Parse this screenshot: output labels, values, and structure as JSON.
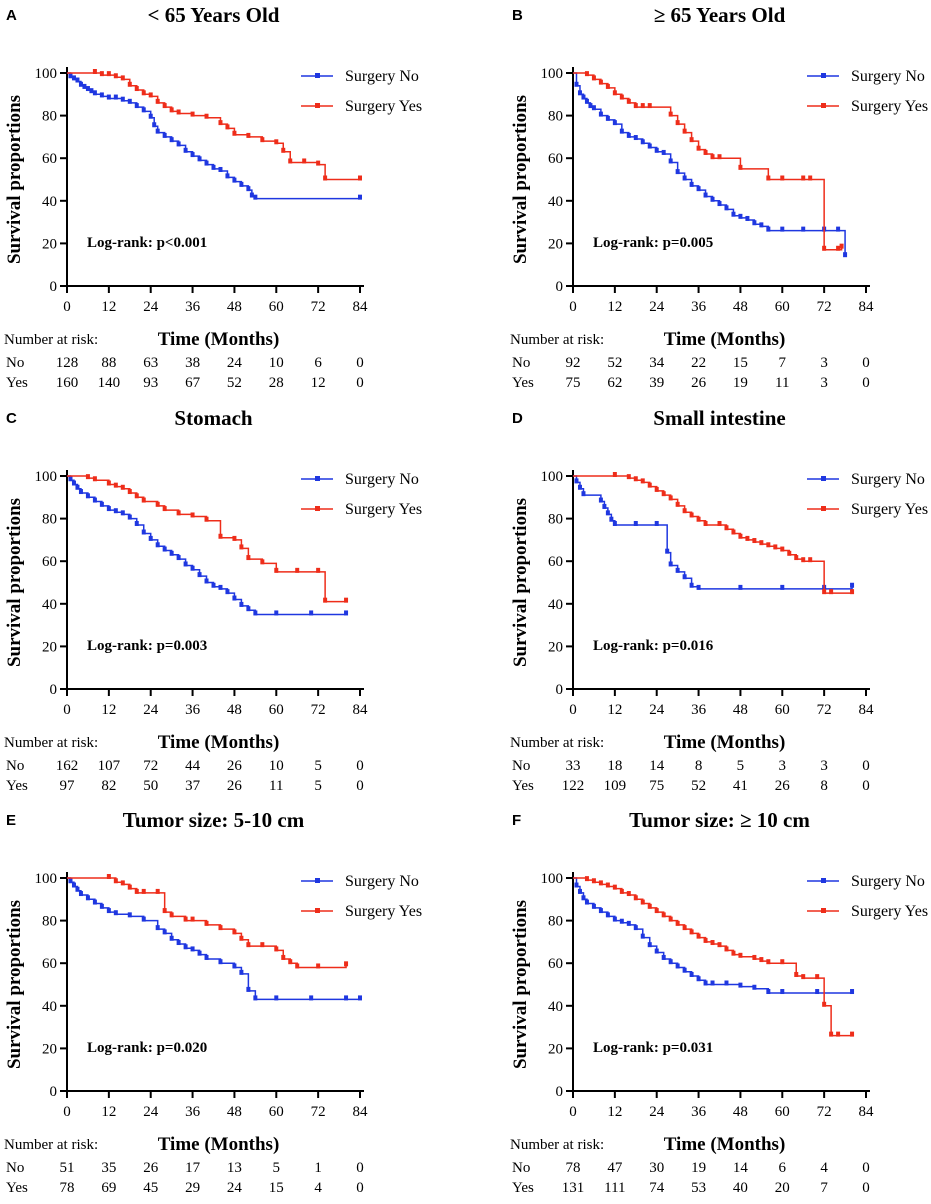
{
  "colors": {
    "no": "#1f37e0",
    "yes": "#ee2d1a",
    "axis": "#000000"
  },
  "axis_common": {
    "ylabel": "Survival proportions",
    "xlabel": "Time (Months)",
    "xticks": [
      0,
      12,
      24,
      36,
      48,
      60,
      72,
      84
    ],
    "yticks": [
      0,
      20,
      40,
      60,
      80,
      100
    ],
    "xlim": [
      0,
      84
    ],
    "ylim": [
      0,
      100
    ],
    "risk_header": "Number at risk:",
    "row_no": "No",
    "row_yes": "Yes"
  },
  "chart_data": [
    {
      "type": "line",
      "panel_label": "A",
      "title": "< 65 Years Old",
      "legend": [
        "Surgery No",
        "Surgery Yes"
      ],
      "annotation": "Log-rank: p<0.001",
      "series": [
        {
          "name": "Surgery No",
          "x": [
            0,
            1,
            2,
            3,
            4,
            5,
            6,
            7,
            8,
            10,
            12,
            14,
            16,
            18,
            20,
            22,
            24,
            25,
            26,
            28,
            30,
            32,
            34,
            36,
            38,
            40,
            42,
            44,
            46,
            48,
            50,
            52,
            53,
            54,
            84
          ],
          "y": [
            100,
            98,
            97,
            96,
            94,
            93,
            92,
            91,
            90,
            89,
            88,
            88,
            87,
            86,
            84,
            82,
            79,
            75,
            72,
            70,
            68,
            66,
            63,
            61,
            59,
            57,
            55,
            54,
            51,
            49,
            47,
            45,
            42,
            41,
            41
          ]
        },
        {
          "name": "Surgery Yes",
          "x": [
            0,
            8,
            10,
            12,
            14,
            16,
            18,
            20,
            22,
            24,
            26,
            28,
            30,
            32,
            36,
            40,
            44,
            46,
            48,
            52,
            56,
            60,
            62,
            64,
            68,
            72,
            74,
            84
          ],
          "y": [
            100,
            100,
            99,
            99,
            98,
            97,
            94,
            92,
            90,
            89,
            86,
            84,
            82,
            81,
            80,
            79,
            76,
            74,
            71,
            70,
            68,
            67,
            63,
            58,
            58,
            57,
            50,
            50
          ]
        }
      ],
      "risk": {
        "No": [
          128,
          88,
          63,
          38,
          24,
          10,
          6,
          0
        ],
        "Yes": [
          160,
          140,
          93,
          67,
          52,
          28,
          12,
          0
        ]
      }
    },
    {
      "type": "line",
      "panel_label": "B",
      "title": "≥ 65 Years Old",
      "legend": [
        "Surgery No",
        "Surgery Yes"
      ],
      "annotation": "Log-rank: p=0.005",
      "series": [
        {
          "name": "Surgery No",
          "x": [
            0,
            1,
            2,
            3,
            4,
            5,
            6,
            8,
            10,
            12,
            14,
            16,
            18,
            20,
            22,
            24,
            26,
            28,
            30,
            32,
            34,
            36,
            38,
            40,
            42,
            44,
            46,
            48,
            50,
            52,
            54,
            56,
            60,
            66,
            72,
            76,
            78
          ],
          "y": [
            100,
            94,
            90,
            88,
            86,
            84,
            83,
            80,
            78,
            76,
            72,
            70,
            69,
            67,
            65,
            63,
            62,
            58,
            53,
            50,
            47,
            45,
            42,
            40,
            38,
            36,
            33,
            32,
            31,
            29,
            28,
            26,
            26,
            26,
            26,
            26,
            14
          ]
        },
        {
          "name": "Surgery Yes",
          "x": [
            0,
            4,
            6,
            8,
            10,
            12,
            14,
            16,
            18,
            20,
            22,
            28,
            30,
            32,
            34,
            36,
            38,
            40,
            42,
            48,
            56,
            60,
            66,
            68,
            72,
            76,
            77
          ],
          "y": [
            100,
            99,
            97,
            95,
            93,
            90,
            88,
            86,
            84,
            84,
            84,
            80,
            76,
            72,
            68,
            64,
            62,
            60,
            60,
            55,
            50,
            50,
            50,
            50,
            17,
            17,
            18
          ]
        }
      ],
      "risk": {
        "No": [
          92,
          52,
          34,
          22,
          15,
          7,
          3,
          0
        ],
        "Yes": [
          75,
          62,
          39,
          26,
          19,
          11,
          3,
          0
        ]
      }
    },
    {
      "type": "line",
      "panel_label": "C",
      "title": "Stomach",
      "legend": [
        "Surgery No",
        "Surgery Yes"
      ],
      "annotation": "Log-rank: p=0.003",
      "series": [
        {
          "name": "Surgery No",
          "x": [
            0,
            1,
            2,
            3,
            4,
            6,
            8,
            10,
            12,
            14,
            16,
            18,
            20,
            22,
            24,
            26,
            28,
            30,
            32,
            34,
            36,
            38,
            40,
            42,
            44,
            46,
            48,
            50,
            52,
            54,
            60,
            70,
            80
          ],
          "y": [
            100,
            98,
            96,
            94,
            92,
            90,
            88,
            86,
            84,
            83,
            82,
            80,
            77,
            73,
            70,
            67,
            65,
            63,
            61,
            58,
            56,
            53,
            50,
            48,
            47,
            45,
            42,
            39,
            37,
            35,
            35,
            35,
            35
          ]
        },
        {
          "name": "Surgery Yes",
          "x": [
            0,
            6,
            8,
            12,
            14,
            16,
            18,
            20,
            22,
            26,
            28,
            32,
            36,
            40,
            44,
            48,
            50,
            52,
            56,
            60,
            66,
            72,
            74,
            80
          ],
          "y": [
            100,
            99,
            98,
            96,
            95,
            94,
            92,
            90,
            88,
            86,
            84,
            82,
            81,
            79,
            71,
            70,
            66,
            61,
            59,
            55,
            55,
            55,
            41,
            41
          ]
        }
      ],
      "risk": {
        "No": [
          162,
          107,
          72,
          44,
          26,
          10,
          5,
          0
        ],
        "Yes": [
          97,
          82,
          50,
          37,
          26,
          11,
          5,
          0
        ]
      }
    },
    {
      "type": "line",
      "panel_label": "D",
      "title": "Small intestine",
      "legend": [
        "Surgery No",
        "Surgery Yes"
      ],
      "annotation": "Log-rank: p=0.016",
      "series": [
        {
          "name": "Surgery No",
          "x": [
            0,
            1,
            2,
            3,
            8,
            9,
            10,
            11,
            12,
            18,
            24,
            27,
            28,
            30,
            32,
            34,
            36,
            48,
            60,
            72,
            80
          ],
          "y": [
            100,
            97,
            94,
            91,
            88,
            85,
            82,
            79,
            77,
            77,
            77,
            64,
            58,
            55,
            52,
            48,
            47,
            47,
            47,
            47,
            48
          ]
        },
        {
          "name": "Surgery Yes",
          "x": [
            0,
            12,
            16,
            18,
            20,
            22,
            24,
            26,
            28,
            30,
            32,
            34,
            36,
            38,
            42,
            44,
            46,
            48,
            50,
            52,
            54,
            56,
            58,
            60,
            62,
            64,
            66,
            68,
            72,
            74,
            80
          ],
          "y": [
            100,
            100,
            99,
            98,
            97,
            95,
            93,
            91,
            89,
            86,
            83,
            81,
            79,
            77,
            77,
            75,
            73,
            71,
            70,
            69,
            68,
            67,
            66,
            65,
            63,
            61,
            60,
            60,
            45,
            45,
            45
          ]
        }
      ],
      "risk": {
        "No": [
          33,
          18,
          14,
          8,
          5,
          3,
          3,
          0
        ],
        "Yes": [
          122,
          109,
          75,
          52,
          41,
          26,
          8,
          0
        ]
      }
    },
    {
      "type": "line",
      "panel_label": "E",
      "title": "Tumor size: 5-10 cm",
      "legend": [
        "Surgery No",
        "Surgery Yes"
      ],
      "annotation": "Log-rank: p=0.020",
      "series": [
        {
          "name": "Surgery No",
          "x": [
            0,
            1,
            2,
            3,
            4,
            6,
            8,
            10,
            12,
            14,
            18,
            22,
            26,
            28,
            30,
            32,
            34,
            36,
            38,
            40,
            44,
            48,
            50,
            52,
            54,
            60,
            70,
            80,
            84
          ],
          "y": [
            100,
            98,
            96,
            94,
            92,
            90,
            88,
            86,
            84,
            83,
            82,
            80,
            76,
            74,
            71,
            69,
            67,
            66,
            64,
            62,
            60,
            58,
            55,
            47,
            43,
            43,
            43,
            43,
            43
          ]
        },
        {
          "name": "Surgery Yes",
          "x": [
            0,
            12,
            14,
            16,
            18,
            20,
            22,
            26,
            28,
            30,
            34,
            36,
            40,
            44,
            48,
            50,
            52,
            56,
            60,
            62,
            64,
            66,
            72,
            80
          ],
          "y": [
            100,
            100,
            98,
            97,
            95,
            93,
            93,
            93,
            84,
            82,
            80,
            80,
            78,
            76,
            74,
            71,
            68,
            68,
            66,
            62,
            60,
            58,
            58,
            59
          ]
        }
      ],
      "risk": {
        "No": [
          51,
          35,
          26,
          17,
          13,
          5,
          1,
          0
        ],
        "Yes": [
          78,
          69,
          45,
          29,
          24,
          15,
          4,
          0
        ]
      }
    },
    {
      "type": "line",
      "panel_label": "F",
      "title": "Tumor size: ≥ 10 cm",
      "legend": [
        "Surgery No",
        "Surgery Yes"
      ],
      "annotation": "Log-rank: p=0.031",
      "series": [
        {
          "name": "Surgery No",
          "x": [
            0,
            1,
            2,
            3,
            4,
            6,
            8,
            10,
            12,
            14,
            16,
            18,
            20,
            22,
            24,
            26,
            28,
            30,
            32,
            34,
            36,
            38,
            40,
            44,
            48,
            52,
            56,
            60,
            70,
            80
          ],
          "y": [
            100,
            96,
            93,
            90,
            88,
            86,
            84,
            82,
            80,
            79,
            78,
            76,
            72,
            68,
            65,
            62,
            60,
            58,
            56,
            54,
            52,
            50,
            50,
            50,
            49,
            48,
            46,
            46,
            46,
            46
          ]
        },
        {
          "name": "Surgery Yes",
          "x": [
            0,
            4,
            6,
            8,
            10,
            12,
            14,
            16,
            18,
            20,
            22,
            24,
            26,
            28,
            30,
            32,
            34,
            36,
            38,
            40,
            42,
            44,
            46,
            48,
            52,
            54,
            56,
            60,
            64,
            66,
            70,
            72,
            74,
            76,
            80
          ],
          "y": [
            100,
            99,
            98,
            97,
            96,
            95,
            93,
            92,
            90,
            88,
            86,
            84,
            82,
            80,
            78,
            76,
            74,
            72,
            70,
            69,
            68,
            66,
            64,
            63,
            62,
            61,
            60,
            60,
            54,
            53,
            53,
            40,
            26,
            26,
            26
          ]
        }
      ],
      "risk": {
        "No": [
          78,
          47,
          30,
          19,
          14,
          6,
          4,
          0
        ],
        "Yes": [
          131,
          111,
          74,
          53,
          40,
          20,
          7,
          0
        ]
      }
    }
  ]
}
